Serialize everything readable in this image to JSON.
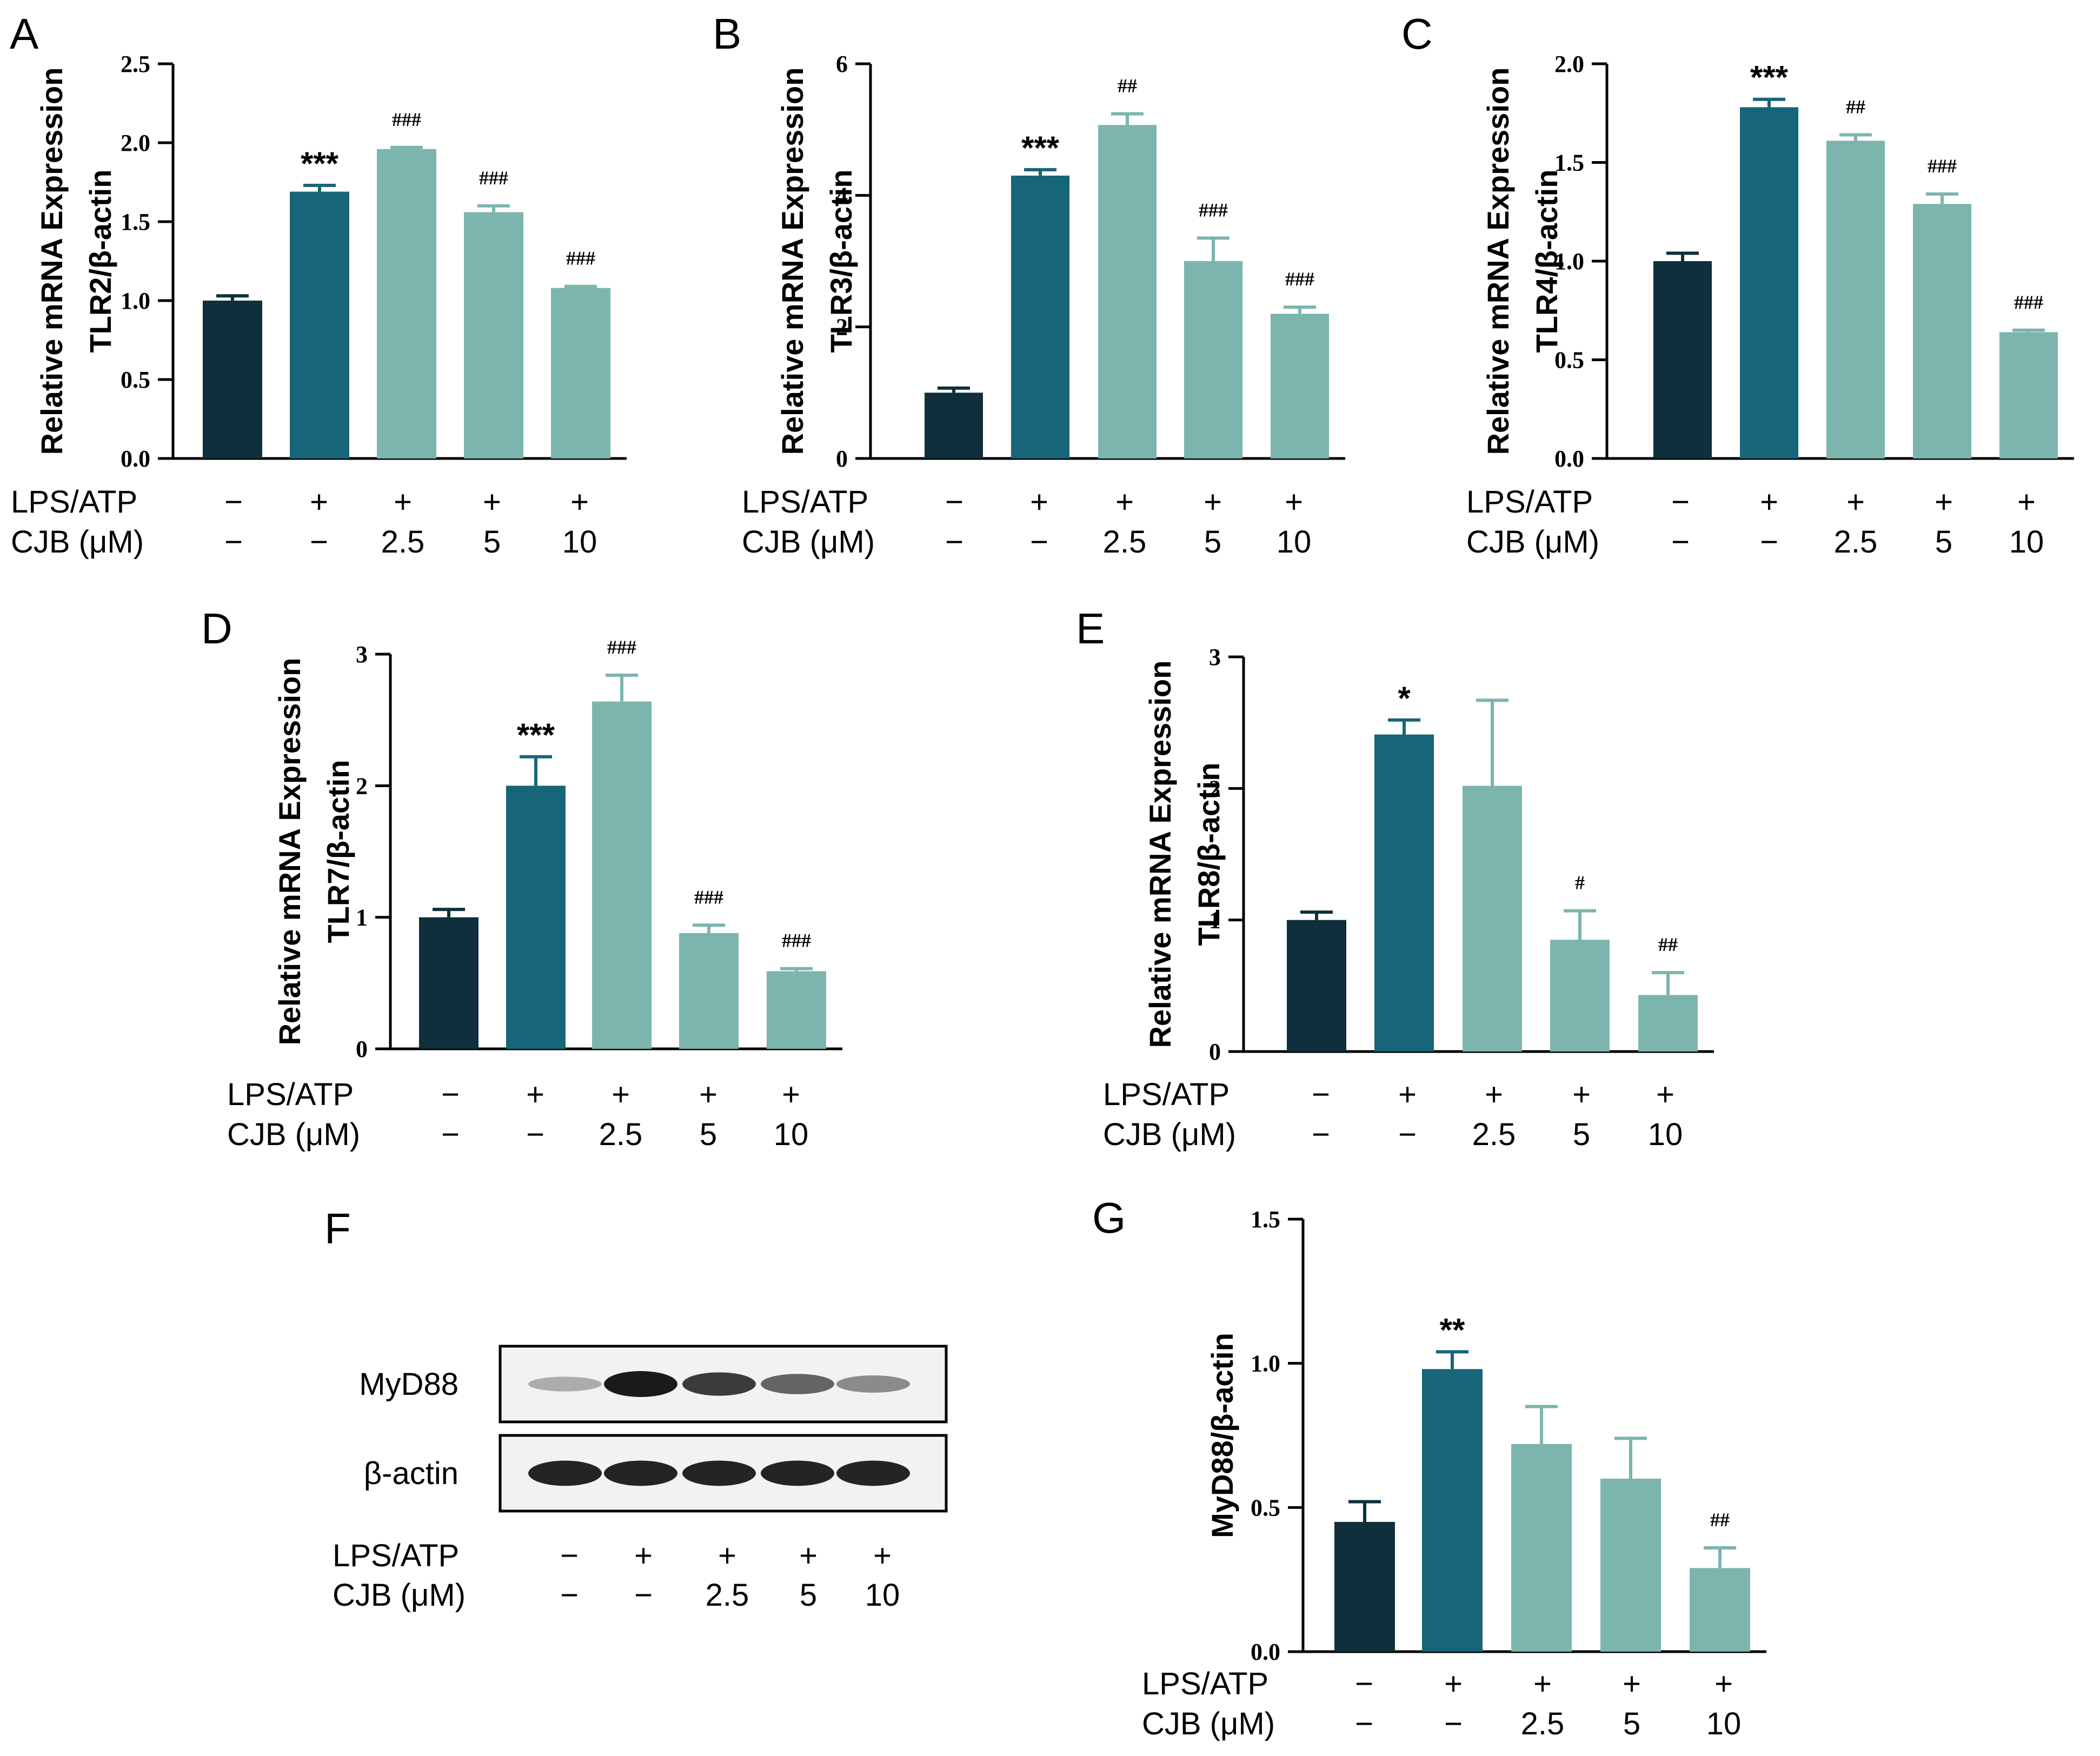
{
  "colors": {
    "control": "#0f2f3d",
    "model": "#176578",
    "treat": "#7bb5ae",
    "axis": "#000000",
    "blot_band": "#1a1a1a"
  },
  "conditions": {
    "row1_label": "LPS/ATP",
    "row2_label": "CJB (μM)",
    "lps_atp": [
      "−",
      "+",
      "+",
      "+",
      "+"
    ],
    "cjb": [
      "−",
      "−",
      "2.5",
      "5",
      "10"
    ]
  },
  "chart_data": [
    {
      "panel": "A",
      "type": "bar",
      "ylabel": [
        "Relative mRNA Expression",
        "TLR2/β-actin"
      ],
      "ylim": [
        0,
        2.5
      ],
      "yticks": [
        "0.0",
        "0.5",
        "1.0",
        "1.5",
        "2.0",
        "2.5"
      ],
      "values": [
        1.0,
        1.69,
        1.96,
        1.56,
        1.08
      ],
      "errors": [
        0.03,
        0.04,
        0.01,
        0.04,
        0.01
      ],
      "labels": [
        "",
        "***",
        "###",
        "###",
        "###"
      ]
    },
    {
      "panel": "B",
      "type": "bar",
      "ylabel": [
        "Relative mRNA Expression",
        "TLR3/β-actin"
      ],
      "ylim": [
        0,
        6
      ],
      "yticks": [
        "0",
        "2",
        "4",
        "6"
      ],
      "values": [
        1.0,
        4.3,
        5.07,
        3.0,
        2.2
      ],
      "errors": [
        0.07,
        0.09,
        0.17,
        0.35,
        0.1
      ],
      "labels": [
        "",
        "***",
        "##",
        "###",
        "###"
      ]
    },
    {
      "panel": "C",
      "type": "bar",
      "ylabel": [
        "Relative mRNA Expression",
        "TLR4/β-actin"
      ],
      "ylim": [
        0,
        2.0
      ],
      "yticks": [
        "0.0",
        "0.5",
        "1.0",
        "1.5",
        "2.0"
      ],
      "values": [
        1.0,
        1.78,
        1.61,
        1.29,
        0.64
      ],
      "errors": [
        0.04,
        0.04,
        0.03,
        0.05,
        0.01
      ],
      "labels": [
        "",
        "***",
        "##",
        "###",
        "###"
      ]
    },
    {
      "panel": "D",
      "type": "bar",
      "ylabel": [
        "Relative mRNA Expression",
        "TLR7/β-actin"
      ],
      "ylim": [
        0,
        3
      ],
      "yticks": [
        "0",
        "1",
        "2",
        "3"
      ],
      "values": [
        1.0,
        2.0,
        2.64,
        0.88,
        0.59
      ],
      "errors": [
        0.06,
        0.22,
        0.2,
        0.06,
        0.02
      ],
      "labels": [
        "",
        "***",
        "###",
        "###",
        "###"
      ]
    },
    {
      "panel": "E",
      "type": "bar",
      "ylabel": [
        "Relative mRNA Expression",
        "TLR8/β-actin"
      ],
      "ylim": [
        0,
        3
      ],
      "yticks": [
        "0",
        "1",
        "2",
        "3"
      ],
      "values": [
        1.0,
        2.41,
        2.02,
        0.85,
        0.43
      ],
      "errors": [
        0.06,
        0.11,
        0.65,
        0.22,
        0.17
      ],
      "labels": [
        "",
        "*",
        "",
        "#",
        "##"
      ]
    },
    {
      "panel": "G",
      "type": "bar",
      "ylabel": [
        "",
        "MyD88/β-actin"
      ],
      "ylim": [
        0,
        1.5
      ],
      "yticks": [
        "0.0",
        "0.5",
        "1.0",
        "1.5"
      ],
      "values": [
        0.45,
        0.98,
        0.72,
        0.6,
        0.29
      ],
      "errors": [
        0.07,
        0.06,
        0.13,
        0.14,
        0.07
      ],
      "labels": [
        "",
        "**",
        "",
        "",
        "##"
      ]
    }
  ],
  "blot": {
    "panel": "F",
    "rows": [
      {
        "label": "MyD88",
        "intensity": [
          0.2,
          1.0,
          0.82,
          0.6,
          0.38
        ]
      },
      {
        "label": "β-actin",
        "intensity": [
          0.95,
          0.95,
          0.95,
          0.95,
          0.95
        ]
      }
    ]
  }
}
